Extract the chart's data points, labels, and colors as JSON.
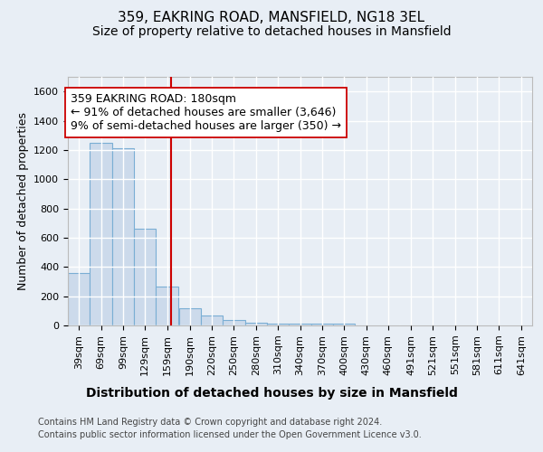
{
  "title": "359, EAKRING ROAD, MANSFIELD, NG18 3EL",
  "subtitle": "Size of property relative to detached houses in Mansfield",
  "xlabel": "Distribution of detached houses by size in Mansfield",
  "ylabel": "Number of detached properties",
  "footnote1": "Contains HM Land Registry data © Crown copyright and database right 2024.",
  "footnote2": "Contains public sector information licensed under the Open Government Licence v3.0.",
  "annotation_line1": "359 EAKRING ROAD: 180sqm",
  "annotation_line2": "← 91% of detached houses are smaller (3,646)",
  "annotation_line3": "9% of semi-detached houses are larger (350) →",
  "property_size": 180,
  "bar_color": "#ccdaeb",
  "bar_edgecolor": "#7aaed4",
  "redline_color": "#cc0000",
  "categories": [
    "39sqm",
    "69sqm",
    "99sqm",
    "129sqm",
    "159sqm",
    "190sqm",
    "220sqm",
    "250sqm",
    "280sqm",
    "310sqm",
    "340sqm",
    "370sqm",
    "400sqm",
    "430sqm",
    "460sqm",
    "491sqm",
    "521sqm",
    "551sqm",
    "581sqm",
    "611sqm",
    "641sqm"
  ],
  "bin_starts": [
    39,
    69,
    99,
    129,
    159,
    190,
    220,
    250,
    280,
    310,
    340,
    370,
    400,
    430,
    460,
    491,
    521,
    551,
    581,
    611,
    641
  ],
  "bin_width": 30,
  "values": [
    360,
    1250,
    1210,
    660,
    265,
    120,
    70,
    35,
    20,
    10,
    10,
    10,
    10,
    0,
    0,
    0,
    0,
    0,
    0,
    0,
    0
  ],
  "ylim": [
    0,
    1700
  ],
  "yticks": [
    0,
    200,
    400,
    600,
    800,
    1000,
    1200,
    1400,
    1600
  ],
  "background_color": "#e8eef5",
  "plot_background": "#e8eef5",
  "grid_color": "#ffffff",
  "title_fontsize": 11,
  "subtitle_fontsize": 10,
  "ylabel_fontsize": 9,
  "xlabel_fontsize": 10,
  "tick_fontsize": 8,
  "footnote_fontsize": 7,
  "annot_fontsize": 9
}
